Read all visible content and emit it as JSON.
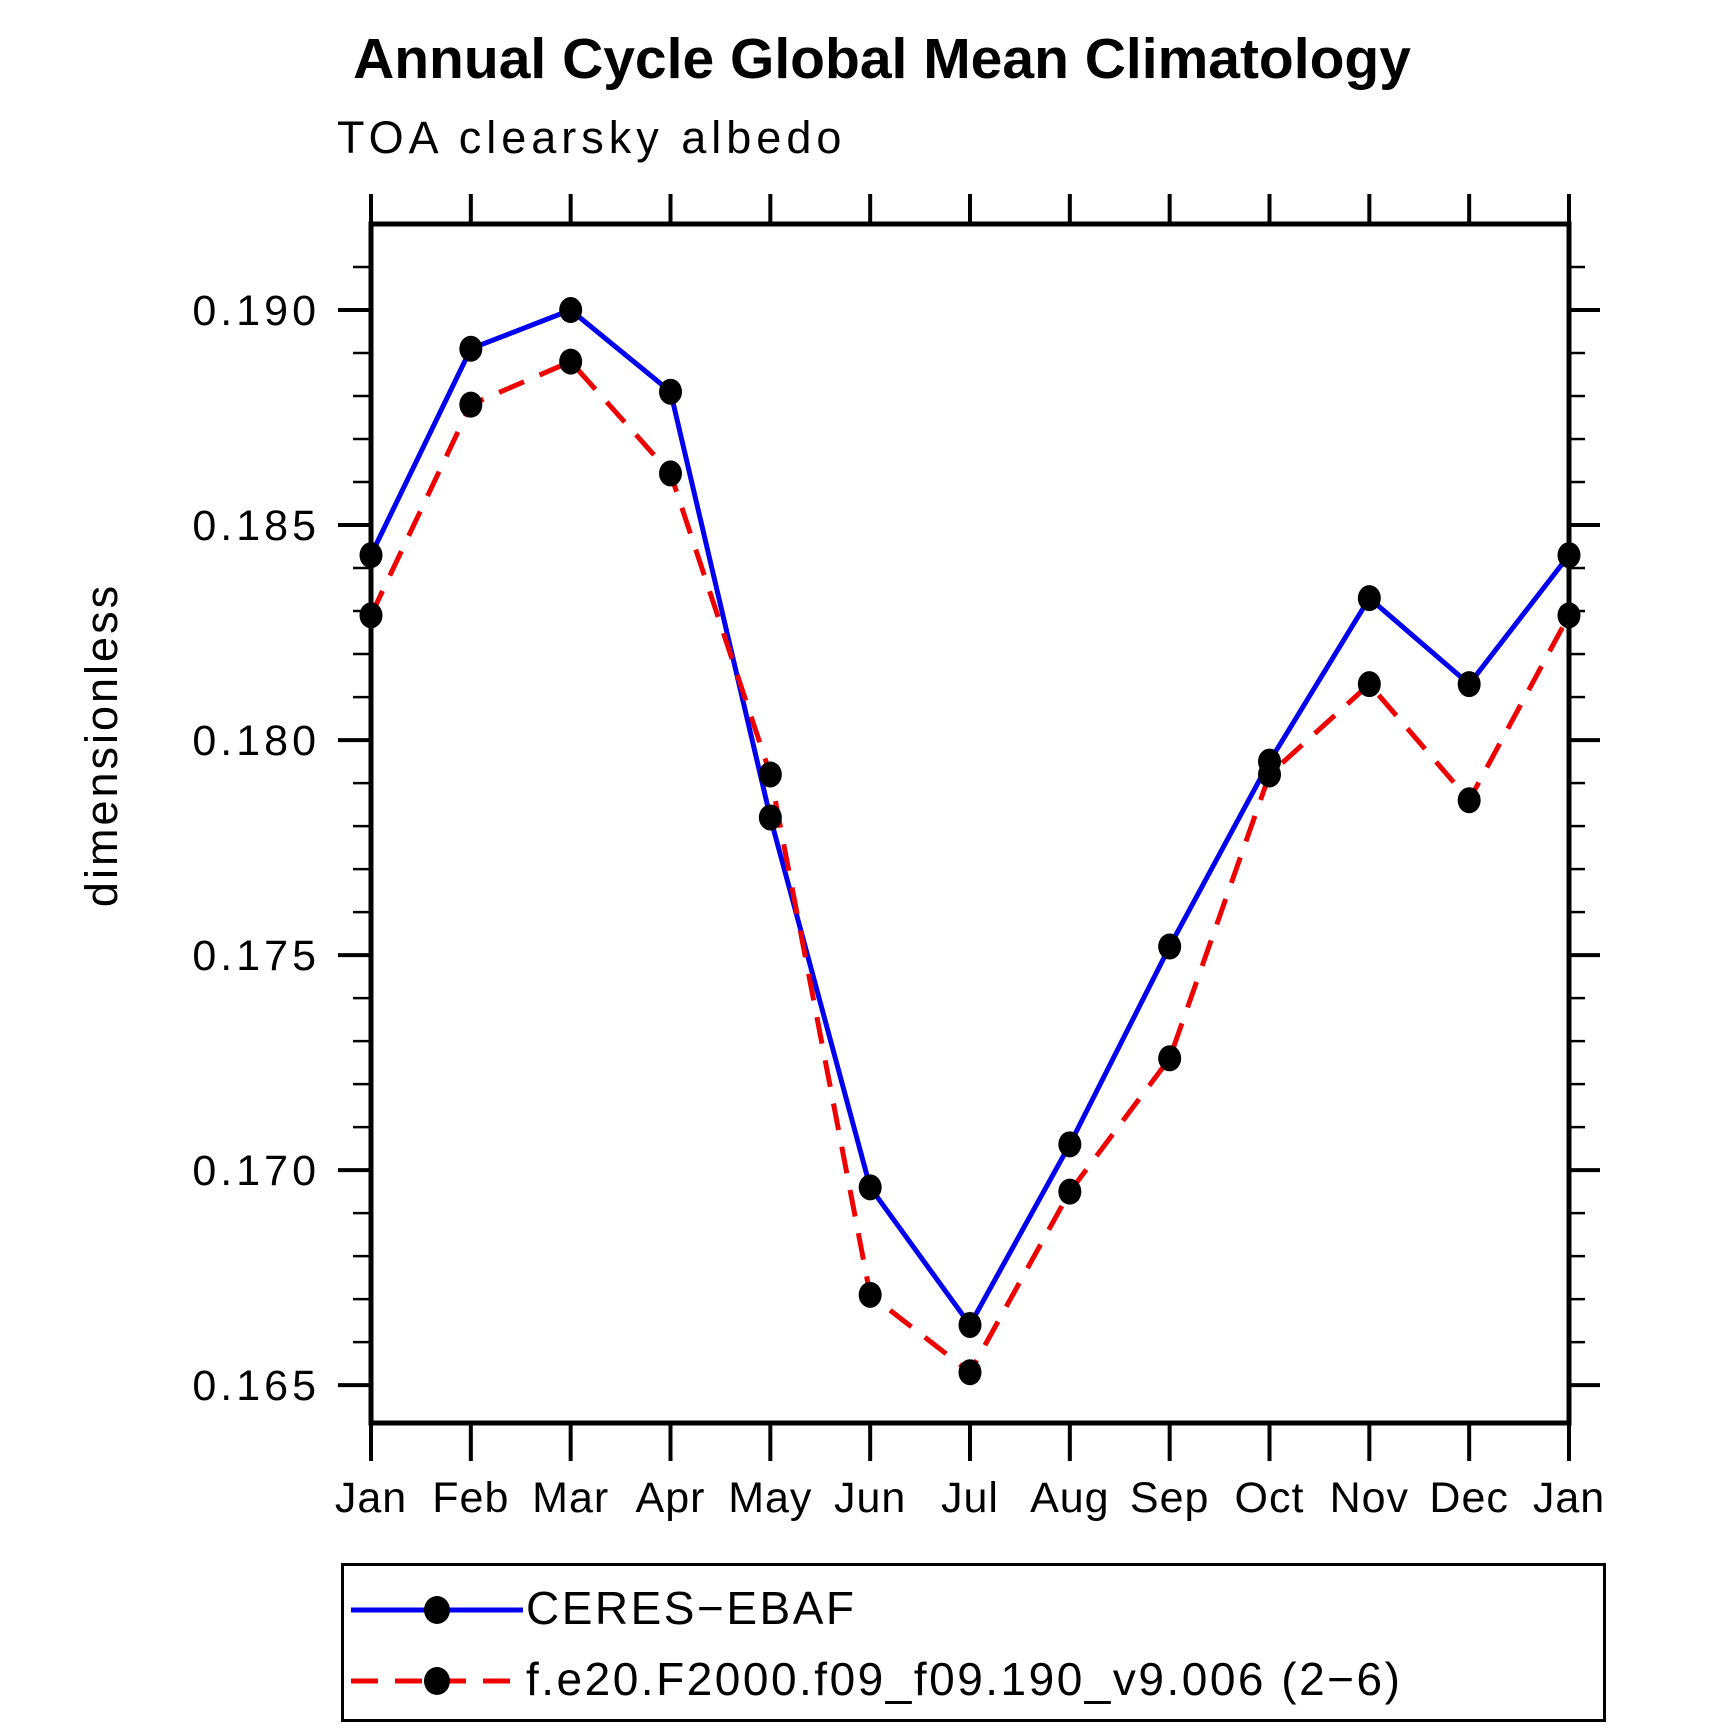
{
  "page": {
    "background": "#ffffff"
  },
  "chart_data": {
    "type": "line",
    "title": "Annual Cycle Global Mean Climatology",
    "subtitle": "TOA clearsky albedo",
    "xlabel": "",
    "ylabel": "dimensionless",
    "categories": [
      "Jan",
      "Feb",
      "Mar",
      "Apr",
      "May",
      "Jun",
      "Jul",
      "Aug",
      "Sep",
      "Oct",
      "Nov",
      "Dec",
      "Jan"
    ],
    "yticks": [
      0.165,
      0.17,
      0.175,
      0.18,
      0.185,
      0.19
    ],
    "ytick_labels": [
      "0.165",
      "0.170",
      "0.175",
      "0.180",
      "0.185",
      "0.190"
    ],
    "minor_tick_step": 0.001,
    "ylim": [
      0.16412,
      0.192
    ],
    "grid": false,
    "legend_position": "bottom-left-box",
    "frame_color": "#000000",
    "series": [
      {
        "name": "CERES−EBAF",
        "color": "#0000EE",
        "line_style": "solid",
        "marker": "filled-circle",
        "marker_color": "#000000",
        "values": [
          0.1843,
          0.1891,
          0.19,
          0.1881,
          0.1782,
          0.1696,
          0.1664,
          0.1706,
          0.1752,
          0.1795,
          0.1833,
          0.1813,
          0.1843
        ]
      },
      {
        "name": "f.e20.F2000.f09_f09.190_v9.006 (2−6)",
        "color": "#EE0000",
        "line_style": "dashed",
        "marker": "filled-circle",
        "marker_color": "#000000",
        "values": [
          0.1829,
          0.1878,
          0.1888,
          0.1862,
          0.1792,
          0.1671,
          0.1653,
          0.1695,
          0.1726,
          0.1792,
          0.1813,
          0.1786,
          0.1829
        ]
      }
    ]
  }
}
